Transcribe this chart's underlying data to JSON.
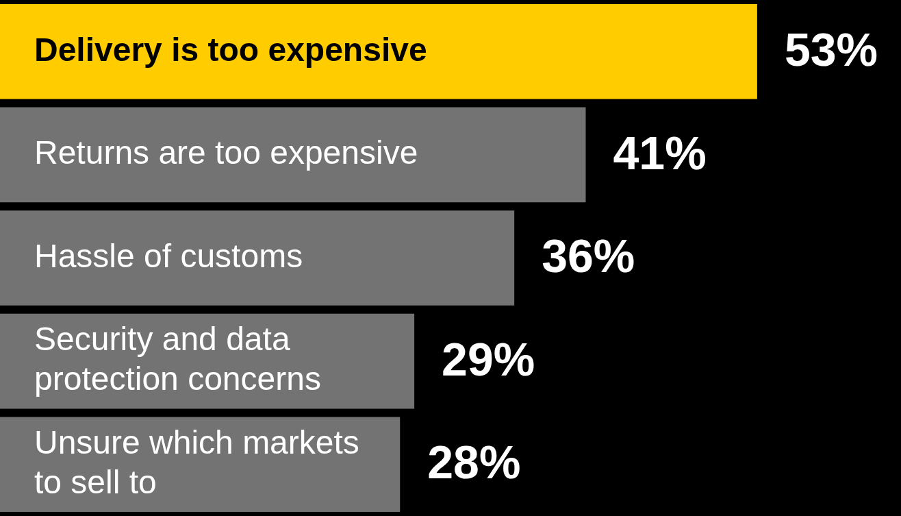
{
  "chart_data": {
    "type": "bar",
    "orientation": "horizontal",
    "categories": [
      "Delivery is too expensive",
      "Returns are too expensive",
      "Hassle of customs",
      "Security and data protection concerns",
      "Unsure which markets to sell to"
    ],
    "values": [
      53,
      41,
      36,
      29,
      28
    ],
    "colors": [
      "#ffcc00",
      "#737373",
      "#737373",
      "#737373",
      "#737373"
    ],
    "value_labels": [
      "53%",
      "41%",
      "36%",
      "29%",
      "28%"
    ],
    "legend": false
  }
}
